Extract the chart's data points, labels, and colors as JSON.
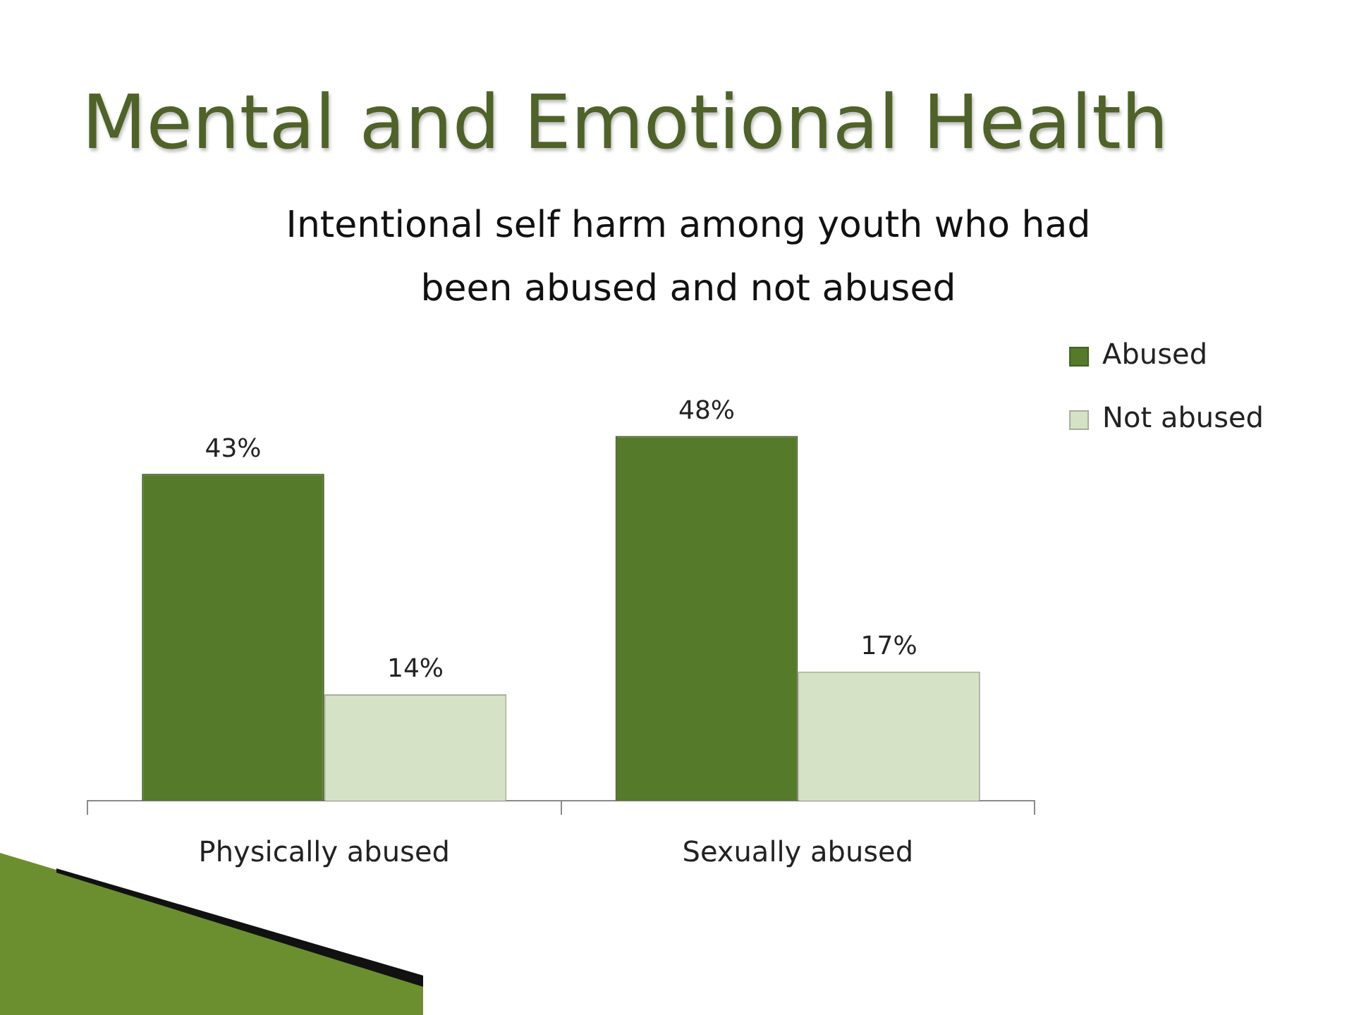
{
  "chart_data": {
    "type": "bar",
    "title": "Mental and Emotional Health",
    "subtitle": "Intentional self harm among youth who had been abused and not abused",
    "categories": [
      "Physically abused",
      "Sexually abused"
    ],
    "series": [
      {
        "name": "Abused",
        "color": "#557a2a",
        "values": [
          43,
          48
        ],
        "value_labels": [
          "43%",
          "48%"
        ]
      },
      {
        "name": "Not abused",
        "color": "#d5e2c5",
        "values": [
          14,
          17
        ],
        "value_labels": [
          "14%",
          "17%"
        ]
      }
    ],
    "legend": "top right"
  }
}
